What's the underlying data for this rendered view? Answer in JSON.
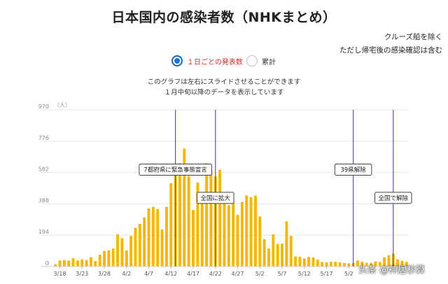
{
  "header": {
    "title": "日本国内の感染者数（NHKまとめ）",
    "note_line1": "クルーズ船を除く",
    "note_line2": "ただし帰宅後の感染確認は含む"
  },
  "toggle": {
    "daily_label": "１日ごとの発表数",
    "cumulative_label": "累計",
    "selected": "daily"
  },
  "description": {
    "line1": "このグラフは左右にスライドさせることができます",
    "line2": "１月中旬以降のデータを表示しています"
  },
  "watermark": "头条 @神居秒算",
  "colors": {
    "bar": "#f5b800",
    "marker_line": "#5c4ed6",
    "grid": "#e6e6e6"
  },
  "chart_data": {
    "type": "bar",
    "yunit": "（人）",
    "yticks": [
      0,
      194,
      388,
      582,
      776,
      970
    ],
    "ylim": [
      0,
      970
    ],
    "xtick_labels": [
      "3/18",
      "3/23",
      "3/28",
      "4/2",
      "4/7",
      "4/12",
      "4/17",
      "4/22",
      "4/27",
      "5/2",
      "5/7",
      "5/12",
      "5/17",
      "5/2"
    ],
    "values": [
      14,
      38,
      40,
      38,
      52,
      38,
      44,
      40,
      58,
      34,
      74,
      96,
      100,
      112,
      200,
      176,
      100,
      190,
      240,
      264,
      304,
      360,
      370,
      356,
      230,
      370,
      516,
      580,
      640,
      730,
      560,
      350,
      520,
      420,
      640,
      596,
      560,
      600,
      400,
      380,
      400,
      320,
      400,
      440,
      430,
      440,
      310,
      170,
      112,
      200,
      140,
      142,
      280,
      190,
      62,
      60,
      50,
      60,
      56,
      42,
      28,
      26,
      30,
      30,
      26,
      22,
      20,
      22,
      38,
      30,
      24,
      22,
      32,
      28,
      58,
      70,
      80,
      44,
      36,
      30
    ],
    "annotations": [
      {
        "label": "7都府県に緊急事態宣言",
        "index": 27,
        "box_y": 600
      },
      {
        "label": "全国に拡大",
        "index": 36,
        "box_y": 425
      },
      {
        "label": "39県解除",
        "index": 67,
        "box_y": 600
      },
      {
        "label": "全国で解除",
        "index": 76,
        "box_y": 425
      }
    ]
  }
}
